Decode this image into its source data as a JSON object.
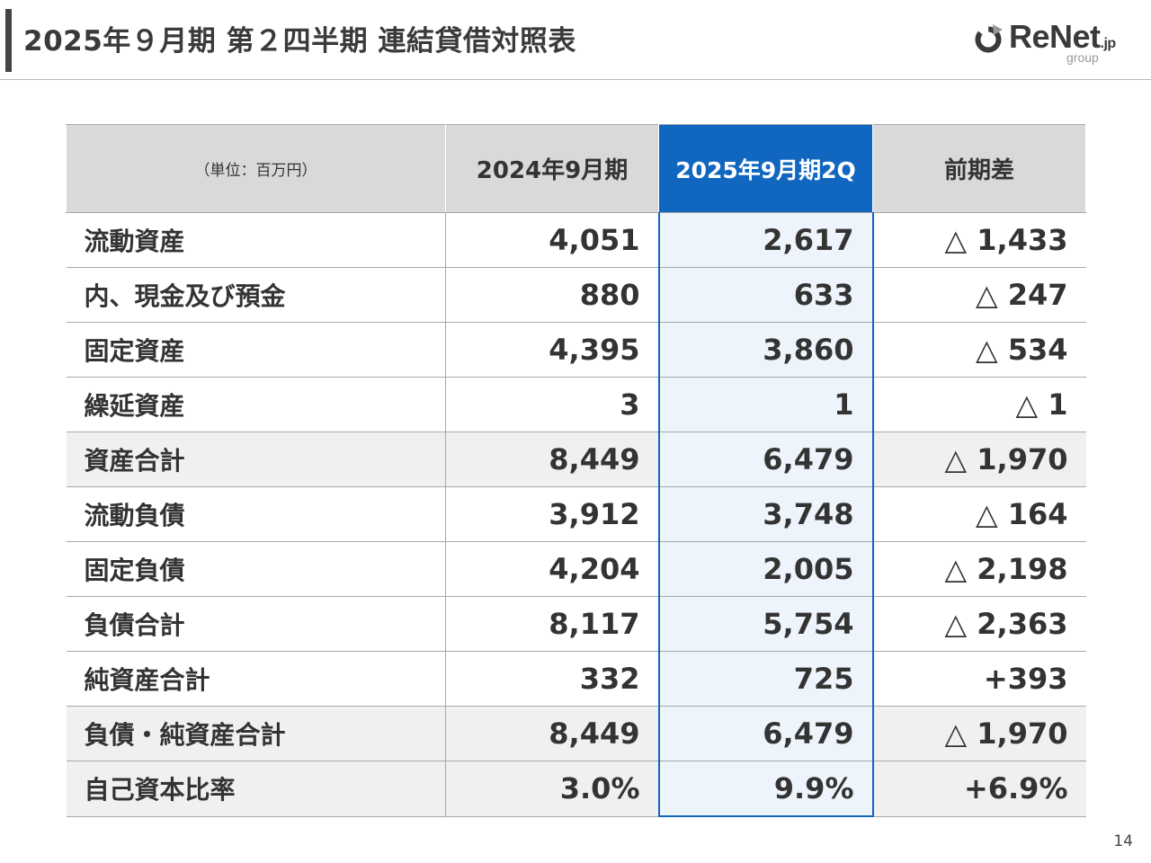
{
  "header": {
    "title": "2025年９月期 第２四半期 連結貸借対照表",
    "logo_text": "ReNet",
    "logo_domain": ".jp",
    "logo_sub": "group"
  },
  "table": {
    "headers": [
      "（単位：百万円）",
      "2024年9月期",
      "2025年9月期2Q",
      "前期差"
    ],
    "rows": [
      {
        "label": "流動資産",
        "prev": "4,051",
        "cur": "2,617",
        "diff": "△ 1,433",
        "indent": false,
        "shaded": false
      },
      {
        "label": "内、現金及び預金",
        "prev": "880",
        "cur": "633",
        "diff": "△ 247",
        "indent": true,
        "shaded": false
      },
      {
        "label": "固定資産",
        "prev": "4,395",
        "cur": "3,860",
        "diff": "△ 534",
        "indent": false,
        "shaded": false
      },
      {
        "label": "繰延資産",
        "prev": "3",
        "cur": "1",
        "diff": "△ 1",
        "indent": false,
        "shaded": false
      },
      {
        "label": "資産合計",
        "prev": "8,449",
        "cur": "6,479",
        "diff": "△ 1,970",
        "indent": false,
        "shaded": true
      },
      {
        "label": "流動負債",
        "prev": "3,912",
        "cur": "3,748",
        "diff": "△ 164",
        "indent": false,
        "shaded": false
      },
      {
        "label": "固定負債",
        "prev": "4,204",
        "cur": "2,005",
        "diff": "△ 2,198",
        "indent": false,
        "shaded": false
      },
      {
        "label": "負債合計",
        "prev": "8,117",
        "cur": "5,754",
        "diff": "△ 2,363",
        "indent": false,
        "shaded": false
      },
      {
        "label": "純資産合計",
        "prev": "332",
        "cur": "725",
        "diff": "+393",
        "indent": false,
        "shaded": false
      },
      {
        "label": "負債・純資産合計",
        "prev": "8,449",
        "cur": "6,479",
        "diff": "△ 1,970",
        "indent": false,
        "shaded": true
      },
      {
        "label": "自己資本比率",
        "prev": "3.0%",
        "cur": "9.9%",
        "diff": "+6.9%",
        "indent": false,
        "shaded": true
      }
    ]
  },
  "colors": {
    "accent": "#1166c0",
    "header_bg": "#d9d9d9",
    "shade_bg": "#f0f0f0",
    "current_col_bg": "#eef4fb"
  },
  "footer": {
    "page_number": "14"
  }
}
